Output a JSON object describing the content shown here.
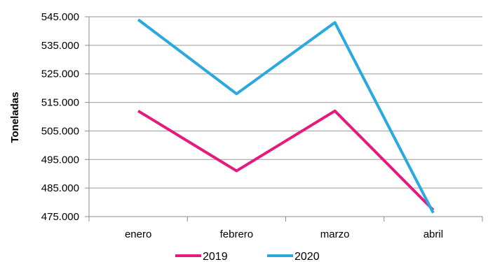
{
  "chart_data": {
    "type": "line",
    "ylabel": "Toneladas",
    "xlabel": "",
    "categories": [
      "enero",
      "febrero",
      "marzo",
      "abril"
    ],
    "ylim": [
      475000,
      545000
    ],
    "yticks": [
      475000,
      485000,
      495000,
      505000,
      515000,
      525000,
      535000,
      545000
    ],
    "ytick_labels": [
      "475.000",
      "485.000",
      "495.000",
      "505.000",
      "515.000",
      "525.000",
      "535.000",
      "545.000"
    ],
    "grid": true,
    "legend_position": "bottom",
    "series": [
      {
        "name": "2019",
        "color": "#e6197f",
        "values": [
          512000,
          491000,
          512000,
          477300
        ]
      },
      {
        "name": "2020",
        "color": "#29a9e0",
        "values": [
          544000,
          518000,
          543000,
          476300
        ]
      }
    ]
  }
}
